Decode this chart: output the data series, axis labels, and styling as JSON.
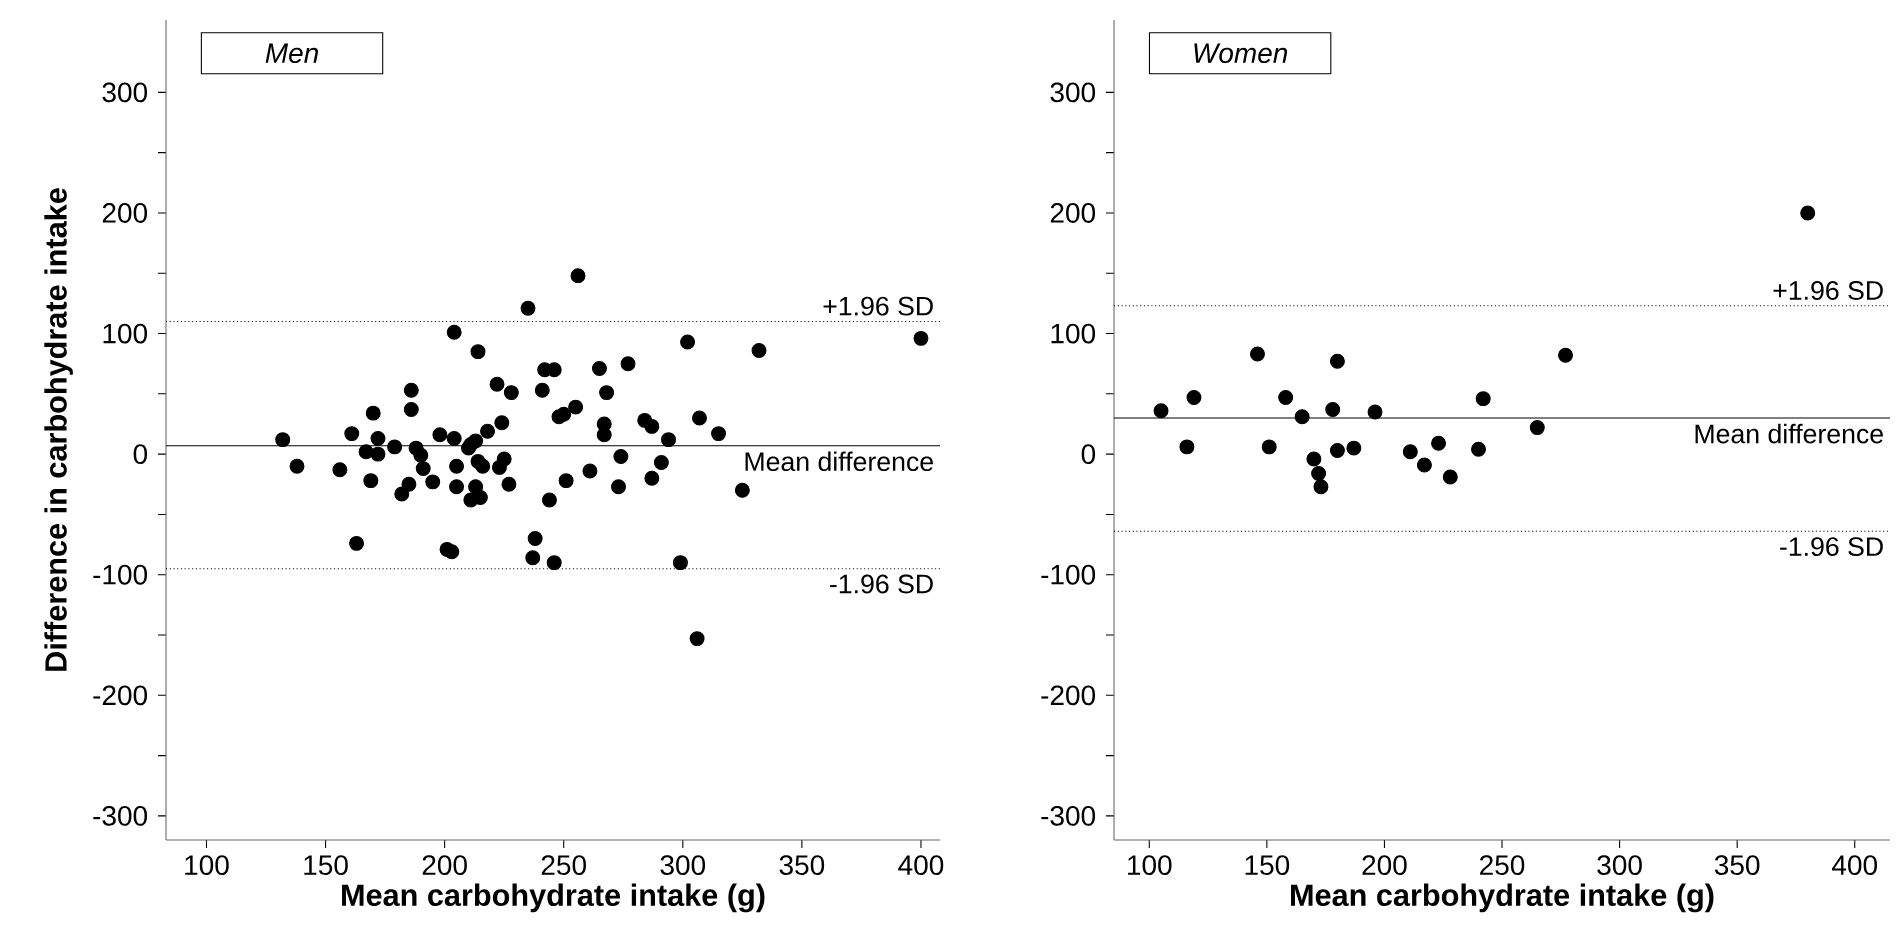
{
  "chart_data": [
    {
      "type": "scatter",
      "title": "Men",
      "xlabel": "Mean carbohydrate intake (g)",
      "ylabel": "Difference in carbohydrate intake",
      "color": "#000000",
      "xlim": [
        83,
        408
      ],
      "ylim": [
        -320,
        360
      ],
      "xticks": [
        100,
        150,
        200,
        250,
        300,
        350,
        400
      ],
      "yticks": [
        -300,
        {
          "value": -250,
          "label": null
        },
        -200,
        {
          "value": -150,
          "label": null
        },
        -100,
        {
          "value": -50,
          "label": null
        },
        0,
        {
          "value": 50,
          "label": null
        },
        100,
        {
          "value": 150,
          "label": null
        },
        200,
        {
          "value": 250,
          "label": null
        },
        300
      ],
      "x": [
        132,
        138,
        156,
        161,
        163,
        170,
        172,
        169,
        167,
        172,
        179,
        186,
        186,
        185,
        182,
        188,
        190,
        191,
        195,
        198,
        204,
        204,
        201,
        203,
        205,
        205,
        210,
        211,
        213,
        214,
        214,
        216,
        213,
        211,
        215,
        218,
        224,
        222,
        228,
        225,
        223,
        227,
        235,
        241,
        244,
        238,
        237,
        256,
        302,
        332,
        400,
        242,
        246,
        265,
        277,
        268,
        248,
        250,
        255,
        267,
        267,
        284,
        287,
        294,
        307,
        315,
        274,
        291,
        261,
        251,
        287,
        273,
        325,
        246,
        299,
        306
      ],
      "values": [
        12,
        -10,
        -13,
        17,
        -74,
        34,
        13,
        -22,
        2,
        0,
        6,
        53,
        37,
        -25,
        -33,
        5,
        -1,
        -12,
        -23,
        16,
        13,
        101,
        -79,
        -81,
        -10,
        -27,
        5,
        8,
        11,
        85,
        -6,
        -10,
        -27,
        -38,
        -36,
        19,
        26,
        58,
        51,
        -4,
        -11,
        -25,
        121,
        53,
        -38,
        -70,
        -86,
        148,
        93,
        86,
        96,
        70,
        70,
        71,
        75,
        51,
        31,
        33,
        39,
        25,
        16,
        28,
        23,
        12,
        30,
        17,
        -2,
        -7,
        -14,
        -22,
        -20,
        -27,
        -30,
        -90,
        -90,
        -153
      ],
      "ref_lines": [
        {
          "axis": "y",
          "value": 110,
          "label": "+1.96 SD",
          "line_style": "dotted"
        },
        {
          "axis": "y",
          "value": 7,
          "label": "Mean difference",
          "line_style": "solid"
        },
        {
          "axis": "y",
          "value": -95,
          "label": "-1.96 SD",
          "line_style": "dotted"
        }
      ]
    },
    {
      "type": "scatter",
      "title": "Women",
      "xlabel": "Mean carbohydrate intake (g)",
      "color": "#000000",
      "xlim": [
        85,
        415
      ],
      "ylim": [
        -320,
        360
      ],
      "xticks": [
        100,
        150,
        200,
        250,
        300,
        350,
        400
      ],
      "yticks": [
        -300,
        {
          "value": -250,
          "label": null
        },
        -200,
        {
          "value": -150,
          "label": null
        },
        -100,
        {
          "value": -50,
          "label": null
        },
        0,
        {
          "value": 50,
          "label": null
        },
        100,
        {
          "value": 150,
          "label": null
        },
        200,
        {
          "value": 250,
          "label": null
        },
        300
      ],
      "x": [
        105,
        116,
        119,
        146,
        151,
        158,
        165,
        170,
        172,
        173,
        178,
        180,
        180,
        187,
        196,
        211,
        217,
        223,
        228,
        240,
        242,
        265,
        277,
        380
      ],
      "values": [
        36,
        6,
        47,
        83,
        6,
        47,
        31,
        -4,
        -16,
        -27,
        37,
        77,
        3,
        5,
        35,
        2,
        -9,
        9,
        -19,
        4,
        46,
        22,
        82,
        200
      ],
      "ref_lines": [
        {
          "axis": "y",
          "value": 123,
          "label": "+1.96 SD",
          "line_style": "dotted"
        },
        {
          "axis": "y",
          "value": 30,
          "label": "Mean difference",
          "line_style": "solid"
        },
        {
          "axis": "y",
          "value": -64,
          "label": "-1.96 SD",
          "line_style": "dotted"
        }
      ]
    }
  ]
}
